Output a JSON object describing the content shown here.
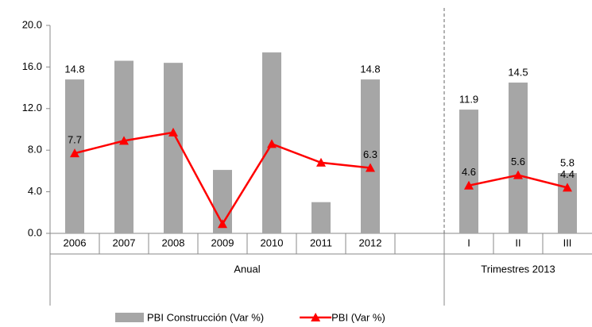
{
  "chart_data": {
    "type": "bar-line",
    "categories": [
      "2006",
      "2007",
      "2008",
      "2009",
      "2010",
      "2011",
      "2012",
      null,
      "I",
      "II",
      "III"
    ],
    "groups": [
      {
        "label": "Anual",
        "start": 0,
        "end": 7
      },
      {
        "label": "Trimestres 2013",
        "start": 8,
        "end": 10
      }
    ],
    "series": [
      {
        "name": "PBI Construcción (Var %)",
        "type": "bar",
        "color": "#a6a6a6",
        "values": [
          14.8,
          16.6,
          16.4,
          6.1,
          17.4,
          3.0,
          14.8,
          null,
          11.9,
          14.5,
          5.8
        ],
        "value_labels": [
          "14.8",
          null,
          null,
          null,
          null,
          null,
          "14.8",
          null,
          "11.9",
          "14.5",
          "5.8"
        ]
      },
      {
        "name": "PBI (Var %)",
        "type": "line",
        "color": "#ff0000",
        "values": [
          7.7,
          8.9,
          9.7,
          0.9,
          8.6,
          6.8,
          6.3,
          null,
          4.6,
          5.6,
          4.4
        ],
        "value_labels": [
          "7.7",
          null,
          null,
          null,
          null,
          null,
          "6.3",
          null,
          "4.6",
          "5.6",
          "4.4"
        ]
      }
    ],
    "ylim": [
      0,
      20
    ],
    "yticks": [
      {
        "value": 0,
        "label": "0.0"
      },
      {
        "value": 4,
        "label": "4.0"
      },
      {
        "value": 8,
        "label": "8.0"
      },
      {
        "value": 12,
        "label": "12.0"
      },
      {
        "value": 16,
        "label": "16.0"
      },
      {
        "value": 20,
        "label": "20.0"
      }
    ],
    "legend": "bottom"
  }
}
